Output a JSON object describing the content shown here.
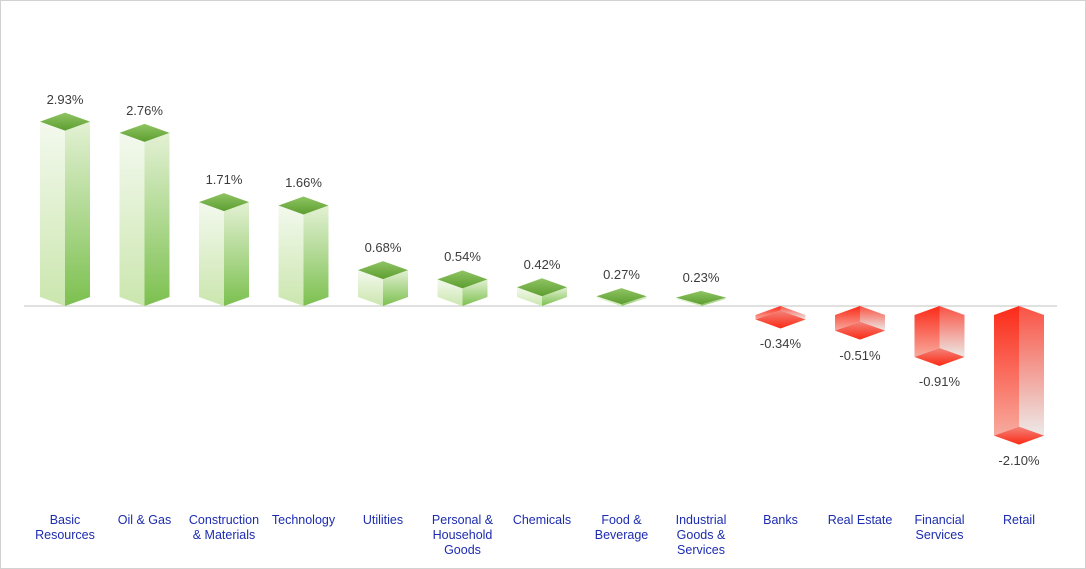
{
  "chart_data": {
    "type": "bar",
    "variant": "3d-box-columns",
    "title": "",
    "xlabel": "",
    "ylabel": "",
    "grid": false,
    "legend": null,
    "ylim": [
      -2.5,
      3.2
    ],
    "baseline_value": 0,
    "categories": [
      "Basic Resources",
      "Oil & Gas",
      "Construction & Materials",
      "Technology",
      "Utilities",
      "Personal & Household Goods",
      "Chemicals",
      "Food & Beverage",
      "Industrial Goods & Services",
      "Banks",
      "Real Estate",
      "Financial Services",
      "Retail"
    ],
    "values": [
      2.93,
      2.76,
      1.71,
      1.66,
      0.68,
      0.54,
      0.42,
      0.27,
      0.23,
      -0.34,
      -0.51,
      -0.91,
      -2.1
    ],
    "value_labels": [
      "2.93%",
      "2.76%",
      "1.71%",
      "1.66%",
      "0.68%",
      "0.54%",
      "0.42%",
      "0.27%",
      "0.23%",
      "-0.34%",
      "-0.51%",
      "-0.91%",
      "-2.10%"
    ],
    "colors": {
      "axis_line": "#d6d6d6",
      "value_label_text": "#3c3c3c",
      "category_label_text": "#1c2cb0",
      "positive_cap_top": "#8fc463",
      "positive_cap_bottom": "#5d9e30",
      "positive_face_left_top": "#f3f9ee",
      "positive_face_left_bottom": "#cbe6ae",
      "positive_face_right_top": "#e3f1d4",
      "positive_face_right_bottom": "#7cc04f",
      "negative_cap_top": "#f2837a",
      "negative_cap_bottom": "#fb2a14",
      "negative_face_left_top": "#fc2a18",
      "negative_face_left_bottom": "#f7ab9f",
      "negative_face_right_top": "#fa5243",
      "negative_face_right_bottom": "#eceae8"
    }
  }
}
